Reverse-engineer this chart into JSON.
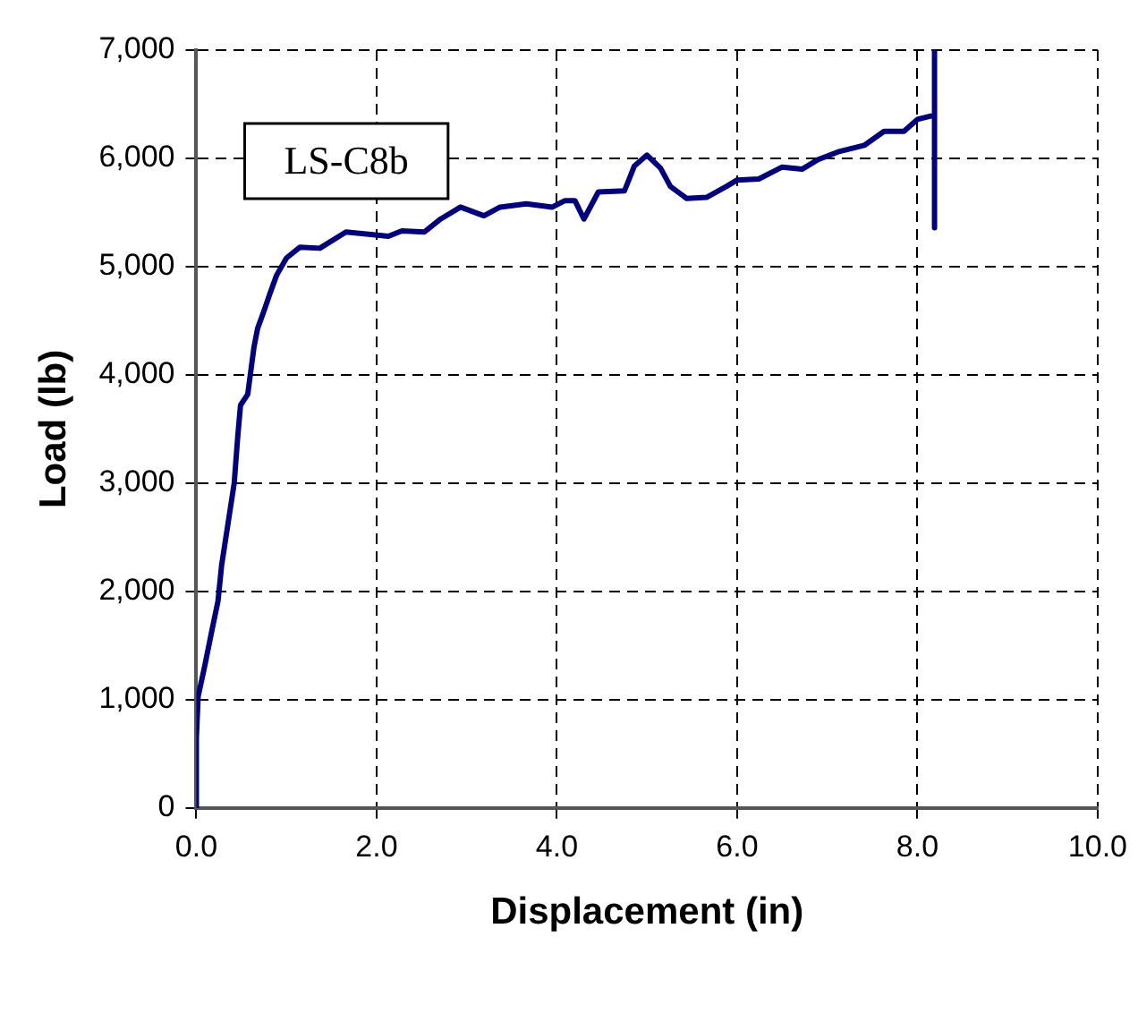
{
  "chart_data": {
    "type": "line",
    "xlabel": "Displacement (in)",
    "ylabel": "Load (lb)",
    "annotations": [
      "LS-C8b"
    ],
    "xlim": [
      0,
      10
    ],
    "xticks": [
      {
        "value": 0,
        "label": "0.0"
      },
      {
        "value": 2,
        "label": "2.0"
      },
      {
        "value": 4,
        "label": "4.0"
      },
      {
        "value": 6,
        "label": "6.0"
      },
      {
        "value": 8,
        "label": "8.0"
      },
      {
        "value": 10,
        "label": "10.0"
      }
    ],
    "ylim": [
      0,
      7000
    ],
    "yticks": [
      {
        "value": 0,
        "label": "0"
      },
      {
        "value": 1000,
        "label": "1,000"
      },
      {
        "value": 2000,
        "label": "2,000"
      },
      {
        "value": 3000,
        "label": "3,000"
      },
      {
        "value": 4000,
        "label": "4,000"
      },
      {
        "value": 5000,
        "label": "5,000"
      },
      {
        "value": 6000,
        "label": "6,000"
      },
      {
        "value": 7000,
        "label": "7,000"
      }
    ],
    "grid": true,
    "legend": false,
    "marker": "none",
    "line_style": "solid",
    "series": [
      {
        "color": "#000080",
        "x": [
          0,
          0,
          0.02,
          0.09,
          0.17,
          0.24,
          0.28,
          0.35,
          0.42,
          0.46,
          0.49,
          0.57,
          0.64,
          0.68,
          0.75,
          0.82,
          0.89,
          1.0,
          1.15,
          1.37,
          1.66,
          1.91,
          2.13,
          2.28,
          2.53,
          2.71,
          2.93,
          3.19,
          3.37,
          3.66,
          3.95,
          4.09,
          4.2,
          4.3,
          4.46,
          4.75,
          4.86,
          5.0,
          5.15,
          5.26,
          5.44,
          5.66,
          5.88,
          6.0,
          6.24,
          6.5,
          6.72,
          6.9,
          7.12,
          7.41,
          7.63,
          7.85,
          8.0,
          8.14,
          8.19,
          8.19,
          8.19
        ],
        "values": [
          0,
          650,
          1030,
          1300,
          1630,
          1910,
          2240,
          2620,
          3000,
          3440,
          3720,
          3820,
          4260,
          4430,
          4590,
          4760,
          4920,
          5080,
          5180,
          5170,
          5320,
          5300,
          5280,
          5330,
          5320,
          5440,
          5550,
          5470,
          5550,
          5580,
          5550,
          5610,
          5610,
          5440,
          5690,
          5700,
          5930,
          6030,
          5910,
          5740,
          5630,
          5640,
          5740,
          5800,
          5810,
          5920,
          5900,
          5990,
          6060,
          6120,
          6250,
          6250,
          6360,
          6390,
          6390,
          7000,
          5360
        ]
      }
    ]
  }
}
